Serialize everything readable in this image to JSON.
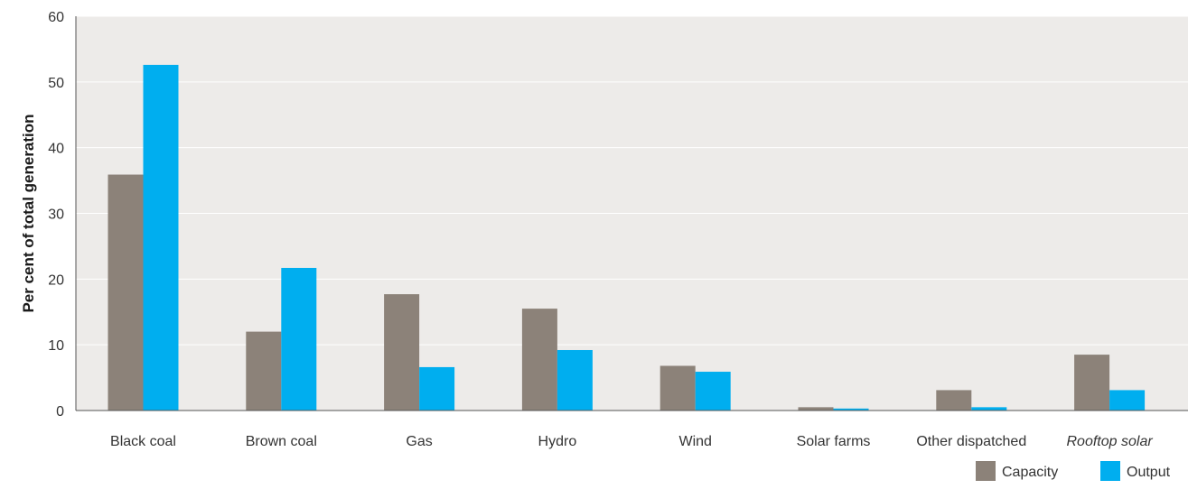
{
  "chart_data": {
    "type": "bar",
    "title": "",
    "xlabel": "",
    "ylabel": "Per cent of total generation",
    "ylim": [
      0,
      60
    ],
    "yticks": [
      0,
      10,
      20,
      30,
      40,
      50,
      60
    ],
    "grid": true,
    "legend_position": "bottom-right",
    "categories": [
      "Black coal",
      "Brown coal",
      "Gas",
      "Hydro",
      "Wind",
      "Solar farms",
      "Other dispatched",
      "Rooftop solar"
    ],
    "italic_categories": [
      "Rooftop solar"
    ],
    "series": [
      {
        "name": "Capacity",
        "color": "#8c8279",
        "values": [
          35.9,
          12.0,
          17.7,
          15.5,
          6.8,
          0.5,
          3.1,
          8.5
        ]
      },
      {
        "name": "Output",
        "color": "#00aeef",
        "values": [
          52.6,
          21.7,
          6.6,
          9.2,
          5.9,
          0.3,
          0.5,
          3.1
        ]
      }
    ]
  },
  "colors": {
    "plot_background": "#edebe9",
    "gridline": "#ffffff",
    "axis": "#555555"
  }
}
